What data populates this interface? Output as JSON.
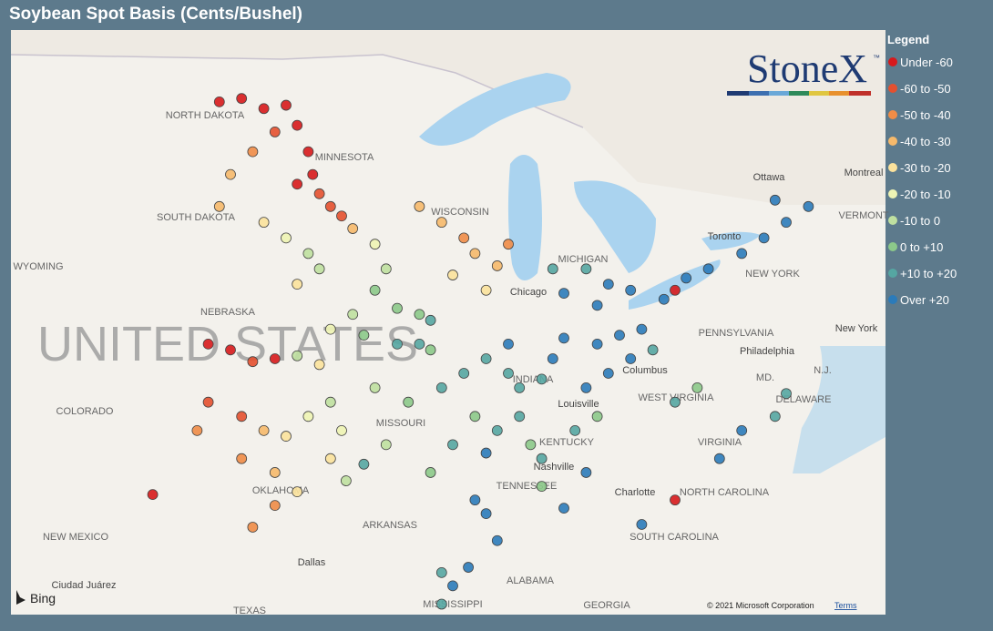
{
  "header": {
    "title": "Soybean Spot Basis (Cents/Bushel)"
  },
  "map": {
    "labels": [
      "NORTH DAKOTA",
      "MINNESOTA",
      "SOUTH DAKOTA",
      "WISCONSIN",
      "WYOMING",
      "NEBRASKA",
      "MICHIGAN",
      "Chicago",
      "UNITED STATES",
      "COLORADO",
      "MISSOURI",
      "INDIANA",
      "Columbus",
      "Louisville",
      "KENTUCKY",
      "WEST VIRGINIA",
      "VIRGINIA",
      "Nashville",
      "TENNESSEE",
      "OKLAHOMA",
      "NORTH CAROLINA",
      "Charlotte",
      "ARKANSAS",
      "SOUTH CAROLINA",
      "NEW MEXICO",
      "Dallas",
      "ALABAMA",
      "MISSISSIPPI",
      "GEORGIA",
      "TEXAS",
      "Ciudad Juárez",
      "PENNSYLVANIA",
      "Philadelphia",
      "New York",
      "NEW YORK",
      "Ottawa",
      "Montreal",
      "VERMONT",
      "Toronto",
      "DELAWARE",
      "MD.",
      "N.J."
    ],
    "brand": "StoneX",
    "trademark": "™",
    "provider": "Bing",
    "copyright": "© 2021 Microsoft Corporation",
    "terms": "Terms"
  },
  "legend": {
    "title": "Legend",
    "items": [
      {
        "label": "Under -60",
        "color": "#d7191c"
      },
      {
        "label": "-60 to -50",
        "color": "#e4502f"
      },
      {
        "label": "-50 to -40",
        "color": "#f08c47"
      },
      {
        "label": "-40 to -30",
        "color": "#f6b96b"
      },
      {
        "label": "-30 to -20",
        "color": "#fbe29c"
      },
      {
        "label": "-20 to -10",
        "color": "#eef4b4"
      },
      {
        "label": "-10 to 0",
        "color": "#bfe0a0"
      },
      {
        "label": "0 to +10",
        "color": "#8cc98a"
      },
      {
        "label": "+10 to +20",
        "color": "#55a6a2"
      },
      {
        "label": "Over +20",
        "color": "#2b7bba"
      }
    ]
  },
  "points": [
    [
      -100,
      48.8,
      0
    ],
    [
      -99,
      48.5,
      0
    ],
    [
      -98,
      48.6,
      0
    ],
    [
      -97.5,
      48,
      0
    ],
    [
      -97,
      47.2,
      0
    ],
    [
      -96.8,
      46.5,
      0
    ],
    [
      -96.5,
      45.9,
      1
    ],
    [
      -97.5,
      46.2,
      0
    ],
    [
      -96,
      45.5,
      1
    ],
    [
      -95.5,
      45.2,
      1
    ],
    [
      -101,
      48.7,
      0
    ],
    [
      -98.5,
      47.8,
      1
    ],
    [
      -99.5,
      47.2,
      2
    ],
    [
      -100.5,
      46.5,
      3
    ],
    [
      -101,
      45.5,
      3
    ],
    [
      -99,
      45,
      4
    ],
    [
      -98,
      44.5,
      5
    ],
    [
      -97,
      44,
      6
    ],
    [
      -96.5,
      43.5,
      6
    ],
    [
      -97.5,
      43,
      4
    ],
    [
      -95,
      44.8,
      3
    ],
    [
      -94,
      44.3,
      5
    ],
    [
      -93.5,
      43.5,
      6
    ],
    [
      -94,
      42.8,
      7
    ],
    [
      -93,
      42.2,
      7
    ],
    [
      -92,
      42,
      7
    ],
    [
      -91.5,
      41.8,
      8
    ],
    [
      -95,
      42,
      6
    ],
    [
      -96,
      41.5,
      5
    ],
    [
      -94.5,
      41.3,
      7
    ],
    [
      -93,
      41,
      8
    ],
    [
      -92,
      41,
      8
    ],
    [
      -91.5,
      40.8,
      7
    ],
    [
      -92,
      45.5,
      3
    ],
    [
      -91,
      45,
      3
    ],
    [
      -90,
      44.5,
      2
    ],
    [
      -89.5,
      44,
      3
    ],
    [
      -88.5,
      43.6,
      3
    ],
    [
      -90.5,
      43.3,
      4
    ],
    [
      -89,
      42.8,
      4
    ],
    [
      -88,
      44.3,
      2
    ],
    [
      -101.5,
      41,
      0
    ],
    [
      -100.5,
      40.8,
      0
    ],
    [
      -99.5,
      40.4,
      1
    ],
    [
      -98.5,
      40.5,
      0
    ],
    [
      -97.5,
      40.6,
      6
    ],
    [
      -96.5,
      40.3,
      4
    ],
    [
      -101.5,
      39,
      1
    ],
    [
      -100,
      38.5,
      1
    ],
    [
      -99,
      38,
      3
    ],
    [
      -98,
      37.8,
      4
    ],
    [
      -97,
      38.5,
      5
    ],
    [
      -96,
      39,
      6
    ],
    [
      -95.5,
      38,
      5
    ],
    [
      -102,
      38,
      2
    ],
    [
      -100,
      37,
      2
    ],
    [
      -98.5,
      36.5,
      3
    ],
    [
      -97.5,
      35.8,
      4
    ],
    [
      -98.5,
      35.3,
      2
    ],
    [
      -99.5,
      34.5,
      2
    ],
    [
      -96,
      37,
      4
    ],
    [
      -95.3,
      36.2,
      6
    ],
    [
      -94,
      39.5,
      6
    ],
    [
      -92.5,
      39,
      7
    ],
    [
      -91,
      39.5,
      8
    ],
    [
      -90,
      40,
      8
    ],
    [
      -89,
      40.5,
      8
    ],
    [
      -88,
      41,
      9
    ],
    [
      -88,
      40,
      8
    ],
    [
      -87.5,
      39.5,
      8
    ],
    [
      -86.5,
      39.8,
      8
    ],
    [
      -86,
      40.5,
      9
    ],
    [
      -85.5,
      41.2,
      9
    ],
    [
      -89.5,
      38.5,
      7
    ],
    [
      -90.5,
      37.5,
      8
    ],
    [
      -89,
      37.2,
      9
    ],
    [
      -88.5,
      38,
      8
    ],
    [
      -87.5,
      38.5,
      8
    ],
    [
      -87,
      37.5,
      7
    ],
    [
      -86.5,
      37,
      8
    ],
    [
      -91.5,
      36.5,
      7
    ],
    [
      -93.5,
      37.5,
      6
    ],
    [
      -94.5,
      36.8,
      8
    ],
    [
      -84,
      41,
      9
    ],
    [
      -83,
      41.3,
      9
    ],
    [
      -82,
      41.5,
      9
    ],
    [
      -83.5,
      40,
      9
    ],
    [
      -84.5,
      39.5,
      9
    ],
    [
      -82.5,
      40.5,
      9
    ],
    [
      -81.5,
      40.8,
      8
    ],
    [
      -84,
      42.3,
      9
    ],
    [
      -83.5,
      43,
      9
    ],
    [
      -84.5,
      43.5,
      8
    ],
    [
      -85.5,
      42.7,
      9
    ],
    [
      -86,
      43.5,
      8
    ],
    [
      -82.5,
      42.8,
      9
    ],
    [
      -81,
      42.5,
      9
    ],
    [
      -80,
      43.2,
      9
    ],
    [
      -79,
      43.5,
      9
    ],
    [
      -77.5,
      44,
      9
    ],
    [
      -76.5,
      44.5,
      9
    ],
    [
      -75.5,
      45,
      9
    ],
    [
      -74.5,
      45.5,
      9
    ],
    [
      -80.5,
      42.8,
      0
    ],
    [
      -76,
      45.7,
      9
    ],
    [
      -89.5,
      35.5,
      9
    ],
    [
      -89,
      35,
      9
    ],
    [
      -88.5,
      34,
      9
    ],
    [
      -89.8,
      33,
      9
    ],
    [
      -90.5,
      32.3,
      9
    ],
    [
      -91,
      31.6,
      8
    ],
    [
      -86.5,
      36,
      7
    ],
    [
      -85.5,
      35.2,
      9
    ],
    [
      -84.5,
      36.5,
      9
    ],
    [
      -82,
      34.6,
      9
    ],
    [
      -80.5,
      35.5,
      0
    ],
    [
      -78.5,
      37,
      9
    ],
    [
      -77.5,
      38,
      9
    ],
    [
      -76,
      38.5,
      8
    ],
    [
      -75.5,
      39.3,
      8
    ],
    [
      -79.5,
      39.5,
      7
    ],
    [
      -80.5,
      39,
      8
    ],
    [
      -85,
      38,
      8
    ],
    [
      -84,
      38.5,
      7
    ],
    [
      -104,
      35.7,
      0
    ],
    [
      -91,
      32.8,
      8
    ]
  ]
}
